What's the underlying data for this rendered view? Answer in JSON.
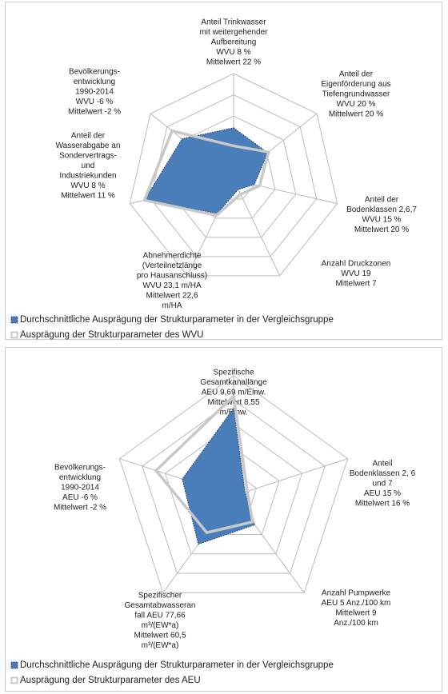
{
  "chart_data": [
    {
      "type": "radar",
      "axes": [
        [
          "Anteil Trinkwasser",
          "mit weitergehender",
          "Aufbereitung",
          "WVU 8 %",
          "Mittelwert 22 %"
        ],
        [
          "Anteil der",
          "Eigenförderung aus",
          "Tiefengrundwasser",
          "WVU 20 %",
          "Mittelwert 20 %"
        ],
        [
          "Anteil der",
          "Bodenklassen 2,6,7",
          "WVU 15 %",
          "Mittelwert 20 %"
        ],
        [
          "Anzahl Druckzonen",
          "WVU 19",
          "Mittelwert 7"
        ],
        [
          "Abnehmerdichte",
          "(Verteilnetzlänge",
          "pro Hausanschluss)",
          "WVU 23,1 m/HA",
          "Mittelwert 22,6",
          "m/HA"
        ],
        [
          "Anteil der",
          "Wasserabgabe an",
          "Sondervertrags-",
          "und",
          "Industriekunden",
          "WVU 8 %",
          "Mittelwert 11 %"
        ],
        [
          "Bevölkerungs-",
          "entwicklung",
          "1990-2014",
          "WVU -6 %",
          "Mittelwert -2 %"
        ]
      ],
      "rlim": [
        0,
        1
      ],
      "rticks": [
        0.2,
        0.4,
        0.6,
        0.8,
        1
      ],
      "series": [
        {
          "name": "Durchschnittliche Ausprägung der Strukturparameter in der Vergleichsgruppe",
          "color": "#4a7ebb",
          "values": [
            0.49,
            0.41,
            0.2,
            0.1,
            0.35,
            0.86,
            0.62
          ]
        },
        {
          "name": "Ausprägung der Strukturparameter des WVU",
          "color": "#c8c8c8",
          "values": [
            0.32,
            0.42,
            0.25,
            0.15,
            0.37,
            0.86,
            0.74
          ]
        }
      ]
    },
    {
      "type": "radar",
      "axes": [
        [
          "Spezifische",
          "Gesamtkanallänge",
          "AEU 9,69 m/Einw.",
          "Mittelwert 8,55",
          "m/Einw."
        ],
        [
          "Anteil",
          "Bodenklassen 2, 6",
          "und 7",
          "AEU 15 %",
          "Mittelwert 16 %"
        ],
        [
          "Anzahl Pumpwerke",
          "AEU 5 Anz./100 km",
          "Mittelwert 9",
          "Anz./100 km"
        ],
        [
          "Spezifischer",
          "Gesamtabwasseran",
          "fall AEU 77,66",
          "m³/(EW*a)",
          "Mittelwert 60,5",
          "m³/(EW*a)"
        ],
        [
          "Bevölkerungs-",
          "entwicklung",
          "1990-2014",
          "AEU -6 %",
          "Mittelwert -2 %"
        ]
      ],
      "rlim": [
        0,
        1
      ],
      "rticks": [
        0.2,
        0.4,
        0.6,
        0.8,
        1
      ],
      "series": [
        {
          "name": "Durchschnittliche Ausprägung der Strukturparameter in der Vergleichsgruppe",
          "color": "#4a7ebb",
          "values": [
            0.73,
            0.1,
            0.3,
            0.5,
            0.45
          ]
        },
        {
          "name": "Ausprägung der Strukturparameter des AEU",
          "color": "#c8c8c8",
          "values": [
            0.83,
            0.12,
            0.27,
            0.38,
            0.68
          ]
        }
      ]
    }
  ]
}
